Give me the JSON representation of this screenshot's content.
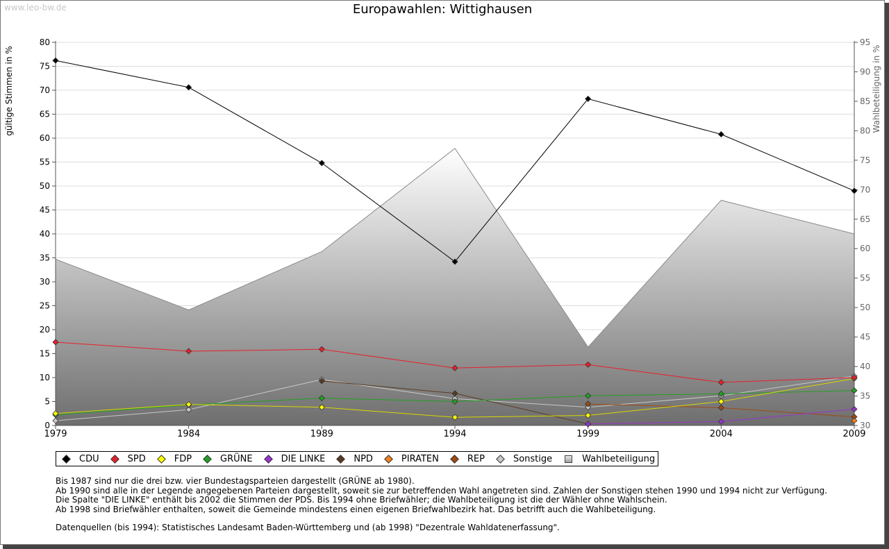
{
  "watermark": "www.leo-bw.de",
  "chart_data": {
    "type": "line",
    "title": "Europawahlen: Wittighausen",
    "ylabel": "gültige Stimmen in %",
    "y2label": "Wahlbeteiligung in %",
    "x": [
      1979,
      1984,
      1989,
      1994,
      1999,
      2004,
      2009
    ],
    "ylim": [
      0,
      80
    ],
    "y2lim": [
      30,
      95
    ],
    "y_ticks": [
      0,
      5,
      10,
      15,
      20,
      25,
      30,
      35,
      40,
      45,
      50,
      55,
      60,
      65,
      70,
      75,
      80
    ],
    "y2_ticks": [
      30,
      35,
      40,
      45,
      50,
      55,
      60,
      65,
      70,
      75,
      80,
      85,
      90,
      95
    ],
    "grid": true,
    "legend_position": "bottom",
    "series": [
      {
        "name": "CDU",
        "color": "#000000",
        "values": [
          76.2,
          70.6,
          54.8,
          34.2,
          68.2,
          60.8,
          49.0
        ]
      },
      {
        "name": "SPD",
        "color": "#e8202a",
        "values": [
          17.4,
          15.5,
          15.9,
          12.0,
          12.7,
          9.0,
          10.0
        ]
      },
      {
        "name": "FDP",
        "color": "#ffff00",
        "values": [
          2.5,
          4.4,
          3.8,
          1.7,
          2.1,
          5.0,
          9.8
        ]
      },
      {
        "name": "GRÜNE",
        "color": "#22a022",
        "values": [
          2.2,
          4.3,
          5.7,
          5.0,
          6.2,
          6.6,
          7.3
        ]
      },
      {
        "name": "DIE LINKE",
        "color": "#9933cc",
        "values": [
          null,
          null,
          null,
          null,
          0.3,
          0.8,
          3.4
        ]
      },
      {
        "name": "NPD",
        "color": "#5a3a22",
        "values": [
          null,
          null,
          9.3,
          6.7,
          0.3,
          null,
          null
        ]
      },
      {
        "name": "PIRATEN",
        "color": "#f08020",
        "values": [
          null,
          null,
          null,
          null,
          null,
          null,
          1.0
        ]
      },
      {
        "name": "REP",
        "color": "#a04a14",
        "values": [
          null,
          null,
          null,
          null,
          4.5,
          3.7,
          1.8
        ]
      },
      {
        "name": "Sonstige",
        "color": "#c8c8c8",
        "values": [
          1.0,
          3.3,
          9.6,
          5.6,
          3.8,
          6.2,
          10.3
        ]
      },
      {
        "name": "Wahlbeteiligung",
        "color": "#909090",
        "axis": "right",
        "type": "area",
        "values": [
          58.2,
          49.6,
          59.5,
          77.0,
          43.3,
          68.2,
          62.5
        ]
      }
    ]
  },
  "notes": [
    "Bis 1987 sind nur die drei bzw. vier Bundestagsparteien dargestellt (GRÜNE ab 1980).",
    "Ab 1990 sind alle in der Legende angegebenen Parteien dargestellt, soweit sie zur betreffenden Wahl angetreten sind. Zahlen der Sonstigen stehen 1990 und 1994 nicht zur Verfügung.",
    "Die Spalte \"DIE LINKE\" enthält bis 2002 die Stimmen der PDS. Bis 1994 ohne Briefwähler; die Wahlbeteiligung ist die der Wähler ohne Wahlschein.",
    "Ab 1998 sind Briefwähler enthalten, soweit die Gemeinde mindestens einen eigenen Briefwahlbezirk hat. Das betrifft auch die Wahlbeteiligung."
  ],
  "source": "Datenquellen (bis 1994): Statistisches Landesamt Baden-Württemberg und (ab 1998) \"Dezentrale Wahldatenerfassung\"."
}
